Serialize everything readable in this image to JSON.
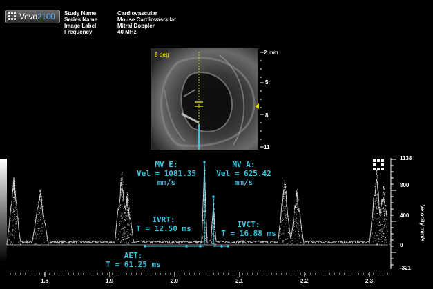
{
  "app": {
    "brand_prefix": "Vevo",
    "brand_model": "2100"
  },
  "study_info": [
    {
      "label": "Study Name",
      "value": "Cardiovascular"
    },
    {
      "label": "Series Name",
      "value": "Mouse Cardiovascular"
    },
    {
      "label": "Image Label",
      "value": "Mitral Doppler"
    },
    {
      "label": "Frequency",
      "value": "40 MHz"
    }
  ],
  "bmode": {
    "angle_label": "8 deg",
    "depth_ticks": [
      "2 mm",
      "5",
      "8",
      "11"
    ],
    "cursor_color": "#d4d200",
    "sample_color": "#39c5e0"
  },
  "doppler": {
    "axis_title": "Velocity mm/s",
    "velocity_ticks": [
      "1138",
      "800",
      "400",
      "0",
      "-321"
    ],
    "time_ticks": [
      "1.8",
      "1.9",
      "2.0",
      "2.1",
      "2.2",
      "2.3"
    ],
    "measure_color": "#39c5e0"
  },
  "measurements": {
    "mve_title": "MV E:",
    "mve_value": "Vel = 1081.35",
    "mve_unit": "mm/s",
    "mva_title": "MV A:",
    "mva_value": "Vel = 625.42",
    "mva_unit": "mm/s",
    "ivrt_title": "IVRT:",
    "ivrt_value": "T = 12.50 ms",
    "ivct_title": "IVCT:",
    "ivct_value": "T = 16.88 ms",
    "aet_title": "AET:",
    "aet_value": "T = 61.25 ms"
  }
}
